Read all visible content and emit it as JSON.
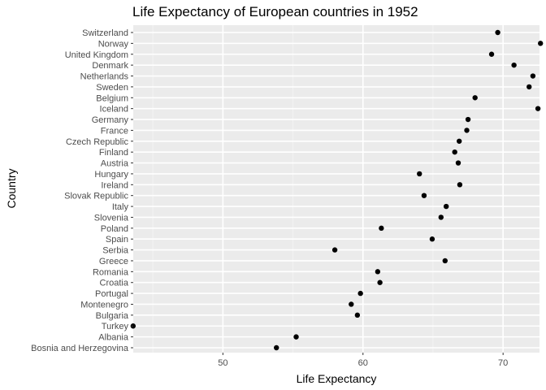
{
  "chart_data": {
    "type": "scatter",
    "title": "Life Expectancy of European countries in 1952",
    "xlabel": "Life Expectancy",
    "ylabel": "Country",
    "xlim": [
      43.6,
      72.6
    ],
    "x_ticks": [
      50,
      60,
      70
    ],
    "x_minor_ticks": [
      45,
      55,
      65
    ],
    "grid": true,
    "panel_color": "#ebebeb",
    "point_color": "#000000",
    "countries": [
      "Switzerland",
      "Norway",
      "United Kingdom",
      "Denmark",
      "Netherlands",
      "Sweden",
      "Belgium",
      "Iceland",
      "Germany",
      "France",
      "Czech Republic",
      "Finland",
      "Austria",
      "Hungary",
      "Ireland",
      "Slovak Republic",
      "Italy",
      "Slovenia",
      "Poland",
      "Spain",
      "Serbia",
      "Greece",
      "Romania",
      "Croatia",
      "Portugal",
      "Montenegro",
      "Bulgaria",
      "Turkey",
      "Albania",
      "Bosnia and Herzegovina"
    ],
    "values": [
      69.62,
      72.67,
      69.18,
      70.78,
      72.13,
      71.86,
      68.0,
      72.49,
      67.5,
      67.41,
      66.87,
      66.55,
      66.8,
      64.03,
      66.91,
      64.36,
      65.94,
      65.57,
      61.31,
      64.94,
      57.99,
      65.86,
      61.05,
      61.21,
      59.82,
      59.16,
      59.6,
      43.59,
      55.23,
      53.82
    ]
  }
}
